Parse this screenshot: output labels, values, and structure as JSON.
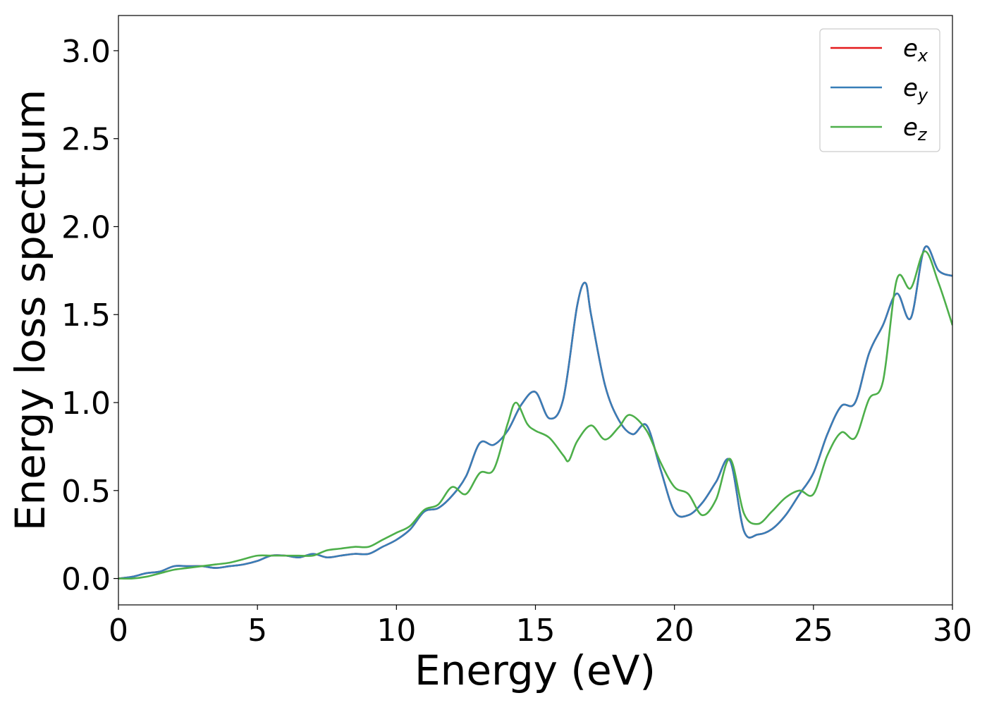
{
  "chart_data": {
    "type": "line",
    "xlabel": "Energy (eV)",
    "ylabel": "Energy loss spectrum",
    "xlim": [
      0,
      30
    ],
    "ylim": [
      -0.15,
      3.2
    ],
    "xticks": [
      0,
      5,
      10,
      15,
      20,
      25,
      30
    ],
    "xtick_labels": [
      "0",
      "5",
      "10",
      "15",
      "20",
      "25",
      "30"
    ],
    "yticks": [
      0.0,
      0.5,
      1.0,
      1.5,
      2.0,
      2.5,
      3.0
    ],
    "ytick_labels": [
      "0.0",
      "0.5",
      "1.0",
      "1.5",
      "2.0",
      "2.5",
      "3.0"
    ],
    "grid": false,
    "legend_position": "top-right",
    "series": [
      {
        "name": "e",
        "subscript": "x",
        "color": "#e41a1c",
        "x": [
          0,
          0.5,
          1,
          1.5,
          2,
          2.5,
          3,
          3.5,
          4,
          4.5,
          5,
          5.5,
          6,
          6.5,
          7,
          7.5,
          8,
          8.5,
          9,
          9.5,
          10,
          10.5,
          11,
          11.5,
          12,
          12.5,
          13,
          13.5,
          14,
          14.5,
          15,
          15.5,
          16,
          16.5,
          16.8,
          17,
          17.5,
          18,
          18.5,
          19,
          19.5,
          20,
          20.5,
          21,
          21.5,
          22,
          22.5,
          23,
          23.5,
          24,
          24.5,
          25,
          25.5,
          26,
          26.5,
          27,
          27.5,
          28,
          28.5,
          29,
          29.5,
          30
        ],
        "y": [
          0.0,
          0.01,
          0.03,
          0.04,
          0.07,
          0.07,
          0.07,
          0.06,
          0.07,
          0.08,
          0.1,
          0.13,
          0.13,
          0.12,
          0.14,
          0.12,
          0.13,
          0.14,
          0.14,
          0.18,
          0.22,
          0.28,
          0.38,
          0.4,
          0.47,
          0.58,
          0.77,
          0.76,
          0.84,
          0.99,
          1.06,
          0.91,
          1.02,
          1.55,
          1.68,
          1.5,
          1.1,
          0.9,
          0.82,
          0.87,
          0.62,
          0.38,
          0.36,
          0.43,
          0.55,
          0.67,
          0.27,
          0.25,
          0.28,
          0.36,
          0.48,
          0.6,
          0.82,
          0.98,
          1.0,
          1.28,
          1.44,
          1.62,
          1.48,
          1.88,
          1.75,
          1.72
        ]
      },
      {
        "name": "e",
        "subscript": "y",
        "color": "#377eb8",
        "x": [
          0,
          0.5,
          1,
          1.5,
          2,
          2.5,
          3,
          3.5,
          4,
          4.5,
          5,
          5.5,
          6,
          6.5,
          7,
          7.5,
          8,
          8.5,
          9,
          9.5,
          10,
          10.5,
          11,
          11.5,
          12,
          12.5,
          13,
          13.5,
          14,
          14.5,
          15,
          15.5,
          16,
          16.5,
          16.8,
          17,
          17.5,
          18,
          18.5,
          19,
          19.5,
          20,
          20.5,
          21,
          21.5,
          22,
          22.5,
          23,
          23.5,
          24,
          24.5,
          25,
          25.5,
          26,
          26.5,
          27,
          27.5,
          28,
          28.5,
          29,
          29.5,
          30
        ],
        "y": [
          0.0,
          0.01,
          0.03,
          0.04,
          0.07,
          0.07,
          0.07,
          0.06,
          0.07,
          0.08,
          0.1,
          0.13,
          0.13,
          0.12,
          0.14,
          0.12,
          0.13,
          0.14,
          0.14,
          0.18,
          0.22,
          0.28,
          0.38,
          0.4,
          0.47,
          0.58,
          0.77,
          0.76,
          0.84,
          0.99,
          1.06,
          0.91,
          1.02,
          1.55,
          1.68,
          1.5,
          1.1,
          0.9,
          0.82,
          0.87,
          0.62,
          0.38,
          0.36,
          0.43,
          0.55,
          0.67,
          0.27,
          0.25,
          0.28,
          0.36,
          0.48,
          0.6,
          0.82,
          0.98,
          1.0,
          1.28,
          1.44,
          1.62,
          1.48,
          1.88,
          1.75,
          1.72
        ]
      },
      {
        "name": "e",
        "subscript": "z",
        "color": "#4daf4a",
        "x": [
          0,
          0.5,
          1,
          1.5,
          2,
          2.5,
          3,
          3.5,
          4,
          4.5,
          5,
          5.5,
          6,
          6.5,
          7,
          7.5,
          8,
          8.5,
          9,
          9.5,
          10,
          10.5,
          11,
          11.5,
          12,
          12.5,
          13,
          13.5,
          14,
          14.3,
          14.7,
          15,
          15.5,
          16,
          16.2,
          16.5,
          17,
          17.5,
          18,
          18.4,
          19,
          19.5,
          20,
          20.5,
          21,
          21.5,
          22,
          22.5,
          23,
          23.5,
          24,
          24.5,
          25,
          25.5,
          26,
          26.5,
          27,
          27.5,
          28,
          28.5,
          29,
          29.5,
          30
        ],
        "y": [
          0.0,
          0.0,
          0.01,
          0.03,
          0.05,
          0.06,
          0.07,
          0.08,
          0.09,
          0.11,
          0.13,
          0.13,
          0.13,
          0.13,
          0.13,
          0.16,
          0.17,
          0.18,
          0.18,
          0.22,
          0.26,
          0.3,
          0.39,
          0.42,
          0.52,
          0.48,
          0.6,
          0.62,
          0.88,
          1.0,
          0.88,
          0.84,
          0.8,
          0.7,
          0.67,
          0.78,
          0.87,
          0.79,
          0.86,
          0.93,
          0.84,
          0.66,
          0.52,
          0.48,
          0.36,
          0.45,
          0.68,
          0.37,
          0.31,
          0.38,
          0.46,
          0.5,
          0.48,
          0.7,
          0.83,
          0.8,
          1.02,
          1.12,
          1.7,
          1.65,
          1.86,
          1.68,
          1.44
        ]
      }
    ]
  }
}
